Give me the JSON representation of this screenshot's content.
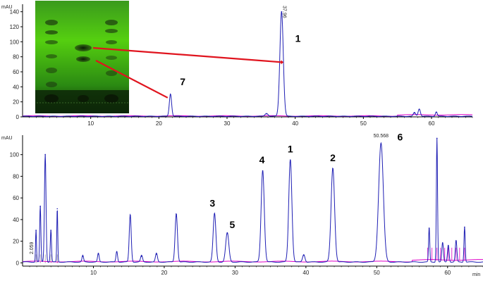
{
  "chart_data": [
    {
      "type": "line",
      "ylabel": "mAU",
      "xlim": [
        0,
        66
      ],
      "ylim": [
        0,
        150
      ],
      "x_ticks": [
        10,
        20,
        30,
        40,
        50,
        60
      ],
      "y_ticks": [
        0,
        20,
        40,
        60,
        80,
        100,
        120,
        140
      ],
      "colors": {
        "signal": "#1f1fb4",
        "baseline": "#e000c8",
        "annotation_line": "#e0141e",
        "axis": "#000000"
      },
      "peaks": [
        {
          "rt": 21.7,
          "height": 30,
          "width": 0.3
        },
        {
          "rt": 35.8,
          "height": 4,
          "width": 0.4
        },
        {
          "rt": 38.0,
          "height": 140,
          "width": 0.45
        },
        {
          "rt": 57.5,
          "height": 5,
          "width": 0.3
        },
        {
          "rt": 58.2,
          "height": 10,
          "width": 0.3
        },
        {
          "rt": 60.7,
          "height": 6,
          "width": 0.25
        }
      ],
      "peak_labels": [
        {
          "text": "1",
          "x": 40.4,
          "y": 100
        },
        {
          "text": "7",
          "x": 23.5,
          "y": 42
        }
      ],
      "annotations": [
        {
          "text": "37.96",
          "x": 38.0,
          "y": 148
        }
      ],
      "inset": {
        "description_free": true,
        "bands_rf": [
          0.52,
          0.43
        ],
        "lanes": 3
      }
    },
    {
      "type": "line",
      "xlabel": "min",
      "ylabel": "mAU",
      "xlim": [
        0,
        65
      ],
      "ylim": [
        -3,
        118
      ],
      "x_ticks": [
        10,
        20,
        30,
        40,
        50,
        60
      ],
      "y_ticks": [
        0,
        20,
        40,
        60,
        80,
        100
      ],
      "peaks": [
        {
          "rt": 1.9,
          "height": 30,
          "width": 0.12
        },
        {
          "rt": 2.5,
          "height": 52,
          "width": 0.15
        },
        {
          "rt": 3.2,
          "height": 100,
          "width": 0.2
        },
        {
          "rt": 4.0,
          "height": 30,
          "width": 0.15
        },
        {
          "rt": 4.9,
          "height": 50,
          "width": 0.12
        },
        {
          "rt": 8.5,
          "height": 6,
          "width": 0.2
        },
        {
          "rt": 10.7,
          "height": 8,
          "width": 0.2
        },
        {
          "rt": 13.3,
          "height": 10,
          "width": 0.2
        },
        {
          "rt": 15.2,
          "height": 44,
          "width": 0.25
        },
        {
          "rt": 16.8,
          "height": 6,
          "width": 0.25
        },
        {
          "rt": 18.9,
          "height": 8,
          "width": 0.25
        },
        {
          "rt": 21.7,
          "height": 45,
          "width": 0.3
        },
        {
          "rt": 27.1,
          "height": 45,
          "width": 0.35
        },
        {
          "rt": 28.9,
          "height": 27,
          "width": 0.4
        },
        {
          "rt": 33.9,
          "height": 85,
          "width": 0.4
        },
        {
          "rt": 37.8,
          "height": 95,
          "width": 0.4
        },
        {
          "rt": 39.7,
          "height": 7,
          "width": 0.3
        },
        {
          "rt": 43.8,
          "height": 87,
          "width": 0.45
        },
        {
          "rt": 50.6,
          "height": 110,
          "width": 0.6
        },
        {
          "rt": 57.4,
          "height": 32,
          "width": 0.15
        },
        {
          "rt": 58.5,
          "height": 115,
          "width": 0.15
        },
        {
          "rt": 59.3,
          "height": 18,
          "width": 0.2
        },
        {
          "rt": 60.1,
          "height": 16,
          "width": 0.2
        },
        {
          "rt": 61.2,
          "height": 20,
          "width": 0.2
        },
        {
          "rt": 62.4,
          "height": 33,
          "width": 0.15
        }
      ],
      "peak_labels": [
        {
          "text": "3",
          "x": 26.8,
          "y": 52
        },
        {
          "text": "5",
          "x": 29.6,
          "y": 32
        },
        {
          "text": "4",
          "x": 33.8,
          "y": 92
        },
        {
          "text": "1",
          "x": 37.8,
          "y": 102
        },
        {
          "text": "2",
          "x": 43.8,
          "y": 94
        },
        {
          "text": "6",
          "x": 53.3,
          "y": 113
        }
      ],
      "annotations": [
        {
          "text": "50.568",
          "x": 50.6,
          "y": 118
        },
        {
          "text": "2.059",
          "x": 1.5,
          "y": 8
        }
      ]
    }
  ]
}
